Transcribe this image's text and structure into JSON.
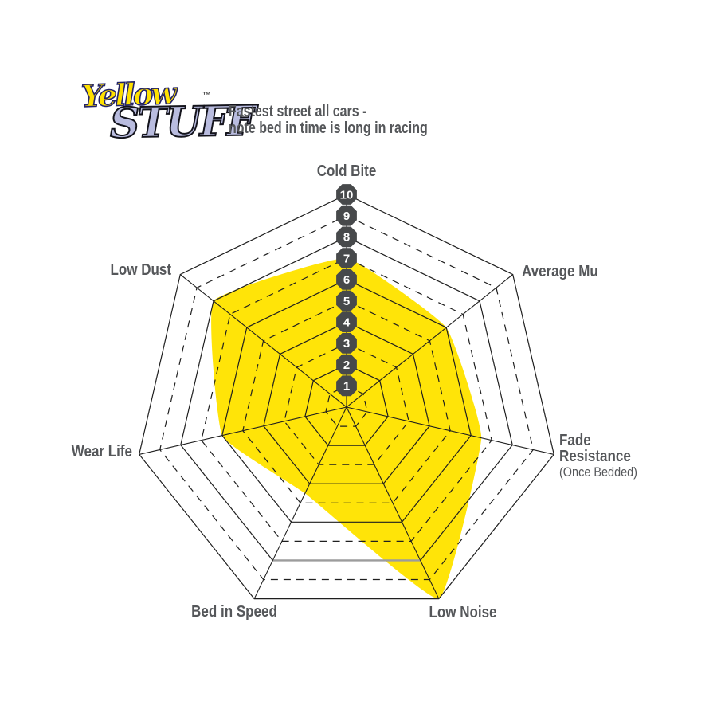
{
  "header": {
    "logo": {
      "word1": "Yellow",
      "word2": "STUFF",
      "trademark": "™",
      "word1_color": "#FFE100",
      "word2_color": "#B9BCDF"
    },
    "tagline_line1": "Fastest street all cars -",
    "tagline_line2": "note bed in time is long in racing"
  },
  "chart_data": {
    "type": "radar",
    "title": "",
    "axes": [
      "Cold Bite",
      "Average Mu",
      "Fade Resistance",
      "Low Noise",
      "Bed in Speed",
      "Wear Life",
      "Low Dust"
    ],
    "fade_label": {
      "line1": "Fade",
      "line2": "Resistance",
      "note": "(Once Bedded)"
    },
    "series": [
      {
        "name": "Yellowstuff",
        "values": [
          7,
          6,
          6.5,
          10,
          4.5,
          6,
          8
        ]
      }
    ],
    "scale": {
      "min": 1,
      "max": 10,
      "step": 1,
      "tick_labels": [
        "1",
        "2",
        "3",
        "4",
        "5",
        "6",
        "7",
        "8",
        "9",
        "10"
      ]
    },
    "layout": {
      "rings": 10,
      "odd_rings_dashed": true,
      "even_rings_solid": true,
      "tick_badges_on_axis": "Cold Bite",
      "grid": true,
      "legend": false,
      "smoothed_area": true
    },
    "colors": {
      "area_fill": "#FFE408",
      "grid_line": "#1F1F1F",
      "ring8_bottom_edge": "#9C9C9C",
      "badge_fill": "#47494B",
      "badge_text": "#FFFFFF",
      "label_text": "#55575A"
    }
  }
}
